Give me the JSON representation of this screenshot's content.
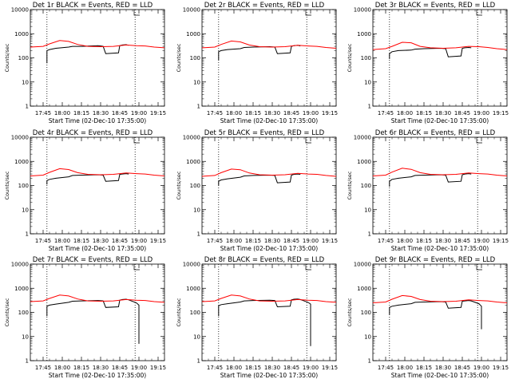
{
  "figure": {
    "background": "#ffffff"
  },
  "colors": {
    "events": "#000000",
    "lld": "#ff0000",
    "axes": "#000000",
    "guide": "#000000"
  },
  "chart_data": [
    {
      "type": "line",
      "title": "Det 1r BLACK = Events, RED = LLD",
      "xlabel": "Start Time (02-Dec-10 17:35:00)",
      "ylabel": "Counts/sec",
      "xlim": [
        "17:35",
        "19:20"
      ],
      "ylim": [
        1,
        10000
      ],
      "yscale": "log",
      "xticks": [
        "17:45",
        "18:00",
        "18:15",
        "18:30",
        "18:45",
        "19:00",
        "19:15"
      ],
      "yticks": [
        "1",
        "10",
        "100",
        "1000",
        "10000"
      ],
      "vlines": [
        "17:48",
        "18:57"
      ],
      "series": [
        {
          "name": "Events",
          "color": "#000000",
          "x": [
            "17:48",
            "17:48",
            "17:50",
            "17:55",
            "18:05",
            "18:08",
            "18:15",
            "18:28",
            "18:32",
            "18:34",
            "18:44",
            "18:45",
            "18:47",
            "18:50",
            "18:52"
          ],
          "y": [
            60,
            200,
            220,
            250,
            280,
            300,
            300,
            320,
            300,
            150,
            160,
            320,
            340,
            350,
            330
          ]
        },
        {
          "name": "LLD",
          "color": "#ff0000",
          "x": [
            "17:35",
            "17:45",
            "17:50",
            "17:58",
            "18:05",
            "18:12",
            "18:20",
            "18:30",
            "18:40",
            "18:50",
            "18:58",
            "19:05",
            "19:12",
            "19:20"
          ],
          "y": [
            280,
            300,
            380,
            520,
            480,
            360,
            300,
            290,
            300,
            340,
            320,
            310,
            280,
            260
          ]
        }
      ]
    },
    {
      "type": "line",
      "title": "Det 2r BLACK = Events, RED = LLD",
      "xlabel": "Start Time (02-Dec-10 17:35:00)",
      "ylabel": "Counts/sec",
      "xlim": [
        "17:35",
        "19:20"
      ],
      "ylim": [
        1,
        10000
      ],
      "yscale": "log",
      "xticks": [
        "17:45",
        "18:00",
        "18:15",
        "18:30",
        "18:45",
        "19:00",
        "19:15"
      ],
      "yticks": [
        "1",
        "10",
        "100",
        "1000",
        "10000"
      ],
      "vlines": [
        "17:48",
        "18:57"
      ],
      "series": [
        {
          "name": "Events",
          "color": "#000000",
          "x": [
            "17:48",
            "17:48",
            "17:50",
            "17:55",
            "18:05",
            "18:08",
            "18:15",
            "18:28",
            "18:32",
            "18:34",
            "18:44",
            "18:45",
            "18:47",
            "18:50",
            "18:52"
          ],
          "y": [
            80,
            180,
            200,
            220,
            240,
            270,
            280,
            290,
            280,
            150,
            160,
            300,
            320,
            330,
            310
          ]
        },
        {
          "name": "LLD",
          "color": "#ff0000",
          "x": [
            "17:35",
            "17:45",
            "17:50",
            "17:58",
            "18:05",
            "18:12",
            "18:20",
            "18:30",
            "18:40",
            "18:50",
            "18:58",
            "19:05",
            "19:12",
            "19:20"
          ],
          "y": [
            260,
            280,
            360,
            500,
            460,
            340,
            290,
            280,
            290,
            330,
            310,
            300,
            270,
            250
          ]
        }
      ]
    },
    {
      "type": "line",
      "title": "Det 3r BLACK = Events, RED = LLD",
      "xlabel": "Start Time (02-Dec-10 17:35:00)",
      "ylabel": "Counts/sec",
      "xlim": [
        "17:35",
        "19:20"
      ],
      "ylim": [
        1,
        10000
      ],
      "yscale": "log",
      "xticks": [
        "17:45",
        "18:00",
        "18:15",
        "18:30",
        "18:45",
        "19:00",
        "19:15"
      ],
      "yticks": [
        "1",
        "10",
        "100",
        "1000",
        "10000"
      ],
      "vlines": [
        "17:48",
        "18:57"
      ],
      "series": [
        {
          "name": "Events",
          "color": "#000000",
          "x": [
            "17:48",
            "17:48",
            "17:50",
            "17:55",
            "18:05",
            "18:08",
            "18:15",
            "18:28",
            "18:32",
            "18:34",
            "18:44",
            "18:45",
            "18:47",
            "18:50",
            "18:52"
          ],
          "y": [
            90,
            150,
            180,
            200,
            210,
            230,
            240,
            250,
            240,
            110,
            120,
            250,
            260,
            270,
            260
          ]
        },
        {
          "name": "LLD",
          "color": "#ff0000",
          "x": [
            "17:35",
            "17:45",
            "17:50",
            "17:58",
            "18:05",
            "18:12",
            "18:20",
            "18:30",
            "18:40",
            "18:50",
            "18:58",
            "19:05",
            "19:12",
            "19:20"
          ],
          "y": [
            220,
            240,
            300,
            440,
            420,
            300,
            260,
            250,
            260,
            300,
            290,
            270,
            240,
            220
          ]
        }
      ]
    },
    {
      "type": "line",
      "title": "Det 4r BLACK = Events, RED = LLD",
      "xlabel": "Start Time (02-Dec-10 17:35:00)",
      "ylabel": "Counts/sec",
      "xlim": [
        "17:35",
        "19:20"
      ],
      "ylim": [
        1,
        10000
      ],
      "yscale": "log",
      "xticks": [
        "17:45",
        "18:00",
        "18:15",
        "18:30",
        "18:45",
        "19:00",
        "19:15"
      ],
      "yticks": [
        "1",
        "10",
        "100",
        "1000",
        "10000"
      ],
      "vlines": [
        "17:48",
        "18:57"
      ],
      "series": [
        {
          "name": "Events",
          "color": "#000000",
          "x": [
            "17:48",
            "17:48",
            "17:50",
            "17:55",
            "18:05",
            "18:08",
            "18:15",
            "18:28",
            "18:32",
            "18:34",
            "18:44",
            "18:45",
            "18:47",
            "18:50",
            "18:52"
          ],
          "y": [
            110,
            160,
            180,
            200,
            230,
            260,
            270,
            280,
            270,
            150,
            160,
            290,
            300,
            310,
            300
          ]
        },
        {
          "name": "LLD",
          "color": "#ff0000",
          "x": [
            "17:35",
            "17:45",
            "17:50",
            "17:58",
            "18:05",
            "18:12",
            "18:20",
            "18:30",
            "18:40",
            "18:50",
            "18:58",
            "19:05",
            "19:12",
            "19:20"
          ],
          "y": [
            250,
            270,
            350,
            500,
            460,
            340,
            290,
            280,
            290,
            330,
            310,
            300,
            270,
            250
          ]
        }
      ]
    },
    {
      "type": "line",
      "title": "Det 5r BLACK = Events, RED = LLD",
      "xlabel": "Start Time (02-Dec-10 17:35:00)",
      "ylabel": "Counts/sec",
      "xlim": [
        "17:35",
        "19:20"
      ],
      "ylim": [
        1,
        10000
      ],
      "yscale": "log",
      "xticks": [
        "17:45",
        "18:00",
        "18:15",
        "18:30",
        "18:45",
        "19:00",
        "19:15"
      ],
      "yticks": [
        "1",
        "10",
        "100",
        "1000",
        "10000"
      ],
      "vlines": [
        "17:48",
        "18:57"
      ],
      "series": [
        {
          "name": "Events",
          "color": "#000000",
          "x": [
            "17:48",
            "17:48",
            "17:50",
            "17:55",
            "18:05",
            "18:08",
            "18:15",
            "18:28",
            "18:32",
            "18:34",
            "18:44",
            "18:45",
            "18:47",
            "18:50",
            "18:52"
          ],
          "y": [
            100,
            150,
            170,
            190,
            220,
            250,
            260,
            270,
            260,
            130,
            140,
            270,
            290,
            300,
            290
          ]
        },
        {
          "name": "LLD",
          "color": "#ff0000",
          "x": [
            "17:35",
            "17:45",
            "17:50",
            "17:58",
            "18:05",
            "18:12",
            "18:20",
            "18:30",
            "18:40",
            "18:50",
            "18:58",
            "19:05",
            "19:12",
            "19:20"
          ],
          "y": [
            240,
            260,
            340,
            480,
            450,
            330,
            280,
            270,
            280,
            320,
            300,
            290,
            260,
            240
          ]
        }
      ]
    },
    {
      "type": "line",
      "title": "Det 6r BLACK = Events, RED = LLD",
      "xlabel": "Start Time (02-Dec-10 17:35:00)",
      "ylabel": "Counts/sec",
      "xlim": [
        "17:35",
        "19:20"
      ],
      "ylim": [
        1,
        10000
      ],
      "yscale": "log",
      "xticks": [
        "17:45",
        "18:00",
        "18:15",
        "18:30",
        "18:45",
        "19:00",
        "19:15"
      ],
      "yticks": [
        "1",
        "10",
        "100",
        "1000",
        "10000"
      ],
      "vlines": [
        "17:48",
        "18:57"
      ],
      "series": [
        {
          "name": "Events",
          "color": "#000000",
          "x": [
            "17:48",
            "17:48",
            "17:50",
            "17:55",
            "18:05",
            "18:08",
            "18:15",
            "18:28",
            "18:32",
            "18:34",
            "18:44",
            "18:45",
            "18:47",
            "18:50",
            "18:52"
          ],
          "y": [
            90,
            150,
            180,
            200,
            230,
            260,
            270,
            280,
            270,
            140,
            150,
            280,
            300,
            310,
            300
          ]
        },
        {
          "name": "LLD",
          "color": "#ff0000",
          "x": [
            "17:35",
            "17:45",
            "17:50",
            "17:58",
            "18:05",
            "18:12",
            "18:20",
            "18:30",
            "18:40",
            "18:50",
            "18:58",
            "19:05",
            "19:12",
            "19:20"
          ],
          "y": [
            250,
            270,
            360,
            520,
            470,
            340,
            290,
            280,
            290,
            330,
            310,
            300,
            270,
            250
          ]
        }
      ]
    },
    {
      "type": "line",
      "title": "Det 7r BLACK = Events, RED = LLD",
      "xlabel": "Start Time (02-Dec-10 17:35:00)",
      "ylabel": "Counts/sec",
      "xlim": [
        "17:35",
        "19:20"
      ],
      "ylim": [
        1,
        10000
      ],
      "yscale": "log",
      "xticks": [
        "17:45",
        "18:00",
        "18:15",
        "18:30",
        "18:45",
        "19:00",
        "19:15"
      ],
      "yticks": [
        "1",
        "10",
        "100",
        "1000",
        "10000"
      ],
      "vlines": [
        "17:48",
        "18:57"
      ],
      "series": [
        {
          "name": "Events",
          "color": "#000000",
          "x": [
            "17:48",
            "17:48",
            "17:50",
            "17:55",
            "18:05",
            "18:08",
            "18:15",
            "18:28",
            "18:32",
            "18:34",
            "18:44",
            "18:45",
            "18:47",
            "18:50",
            "18:52",
            "18:58",
            "19:00",
            "19:00"
          ],
          "y": [
            70,
            180,
            200,
            220,
            260,
            290,
            300,
            310,
            300,
            160,
            170,
            320,
            340,
            350,
            330,
            250,
            200,
            5
          ]
        },
        {
          "name": "LLD",
          "color": "#ff0000",
          "x": [
            "17:35",
            "17:45",
            "17:50",
            "17:58",
            "18:05",
            "18:12",
            "18:20",
            "18:30",
            "18:40",
            "18:50",
            "18:58",
            "19:05",
            "19:12",
            "19:20"
          ],
          "y": [
            280,
            300,
            380,
            520,
            480,
            360,
            300,
            290,
            300,
            340,
            320,
            310,
            280,
            260
          ]
        }
      ]
    },
    {
      "type": "line",
      "title": "Det 8r BLACK = Events, RED = LLD",
      "xlabel": "Start Time (02-Dec-10 17:35:00)",
      "ylabel": "Counts/sec",
      "xlim": [
        "17:35",
        "19:20"
      ],
      "ylim": [
        1,
        10000
      ],
      "yscale": "log",
      "xticks": [
        "17:45",
        "18:00",
        "18:15",
        "18:30",
        "18:45",
        "19:00",
        "19:15"
      ],
      "yticks": [
        "1",
        "10",
        "100",
        "1000",
        "10000"
      ],
      "vlines": [
        "17:48",
        "18:57"
      ],
      "series": [
        {
          "name": "Events",
          "color": "#000000",
          "x": [
            "17:48",
            "17:48",
            "17:50",
            "17:55",
            "18:05",
            "18:08",
            "18:15",
            "18:28",
            "18:32",
            "18:34",
            "18:44",
            "18:45",
            "18:47",
            "18:50",
            "18:52",
            "18:58",
            "19:00",
            "19:00"
          ],
          "y": [
            70,
            190,
            210,
            230,
            270,
            300,
            310,
            320,
            310,
            170,
            180,
            330,
            350,
            360,
            340,
            260,
            220,
            4
          ]
        },
        {
          "name": "LLD",
          "color": "#ff0000",
          "x": [
            "17:35",
            "17:45",
            "17:50",
            "17:58",
            "18:05",
            "18:12",
            "18:20",
            "18:30",
            "18:40",
            "18:50",
            "18:58",
            "19:05",
            "19:12",
            "19:20"
          ],
          "y": [
            280,
            300,
            380,
            520,
            480,
            360,
            300,
            290,
            300,
            340,
            320,
            310,
            280,
            260
          ]
        }
      ]
    },
    {
      "type": "line",
      "title": "Det 9r BLACK = Events, RED = LLD",
      "xlabel": "Start Time (02-Dec-10 17:35:00)",
      "ylabel": "Counts/sec",
      "xlim": [
        "17:35",
        "19:20"
      ],
      "ylim": [
        1,
        10000
      ],
      "yscale": "log",
      "xticks": [
        "17:45",
        "18:00",
        "18:15",
        "18:30",
        "18:45",
        "19:00",
        "19:15"
      ],
      "yticks": [
        "1",
        "10",
        "100",
        "1000",
        "10000"
      ],
      "vlines": [
        "17:48",
        "18:57"
      ],
      "series": [
        {
          "name": "Events",
          "color": "#000000",
          "x": [
            "17:48",
            "17:48",
            "17:50",
            "17:55",
            "18:05",
            "18:08",
            "18:15",
            "18:28",
            "18:32",
            "18:34",
            "18:44",
            "18:45",
            "18:47",
            "18:50",
            "18:52",
            "18:58",
            "19:00",
            "19:00"
          ],
          "y": [
            80,
            160,
            180,
            200,
            230,
            260,
            270,
            280,
            270,
            150,
            160,
            290,
            300,
            310,
            300,
            230,
            180,
            20
          ]
        },
        {
          "name": "LLD",
          "color": "#ff0000",
          "x": [
            "17:35",
            "17:45",
            "17:50",
            "17:58",
            "18:05",
            "18:12",
            "18:20",
            "18:30",
            "18:40",
            "18:50",
            "18:58",
            "19:05",
            "19:12",
            "19:20"
          ],
          "y": [
            250,
            270,
            350,
            500,
            460,
            340,
            290,
            280,
            290,
            330,
            310,
            300,
            270,
            250
          ]
        }
      ]
    }
  ]
}
